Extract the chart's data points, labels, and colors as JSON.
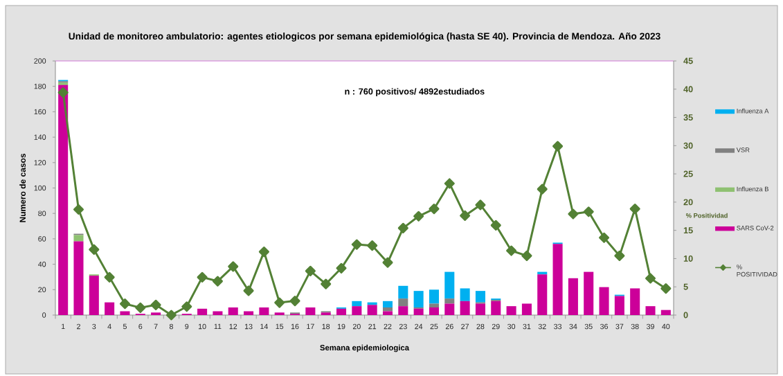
{
  "chart_data": {
    "type": "bar",
    "title": "Unidad de monitoreo ambulatorio:  agentes etiologicos por semana epidemiológica (hasta SE 40). Provincia de Mendoza. Año 2023",
    "xlabel": "Semana epidemiologica",
    "ylabel": "Numero de casos",
    "y2label": "% Positividad",
    "annotations": [
      "n : 760 positivos/ 4892estudiados"
    ],
    "categories": [
      "1",
      "2",
      "3",
      "4",
      "5",
      "6",
      "7",
      "8",
      "9",
      "10",
      "11",
      "12",
      "13",
      "14",
      "15",
      "16",
      "17",
      "18",
      "19",
      "20",
      "21",
      "22",
      "23",
      "24",
      "25",
      "26",
      "27",
      "28",
      "29",
      "30",
      "31",
      "32",
      "33",
      "34",
      "35",
      "36",
      "37",
      "38",
      "39",
      "40"
    ],
    "stacked": true,
    "series": [
      {
        "name": "SARS CoV-2",
        "color": "#cc0099",
        "values": [
          181,
          58,
          31,
          10,
          3,
          1,
          2,
          0,
          1,
          5,
          3,
          6,
          3,
          6,
          2,
          1,
          6,
          2,
          5,
          7,
          8,
          3,
          7,
          5,
          6,
          9,
          11,
          9,
          11,
          7,
          9,
          32,
          56,
          29,
          34,
          22,
          15,
          21,
          7,
          4
        ]
      },
      {
        "name": "Influenza B",
        "color": "#8fc172",
        "values": [
          2,
          5,
          1,
          0,
          0,
          0,
          0,
          0,
          0,
          0,
          0,
          0,
          0,
          0,
          0,
          0,
          0,
          0,
          0,
          0,
          0,
          0,
          0,
          0,
          0,
          0,
          0,
          0,
          0,
          0,
          0,
          0,
          0,
          0,
          0,
          0,
          0,
          0,
          0,
          0
        ]
      },
      {
        "name": "VSR",
        "color": "#808080",
        "values": [
          1,
          1,
          0,
          0,
          0,
          0,
          0,
          0,
          0,
          0,
          0,
          0,
          0,
          0,
          0,
          1,
          0,
          1,
          0,
          0,
          0,
          3,
          6,
          1,
          3,
          4,
          0,
          1,
          1,
          0,
          0,
          0,
          0,
          0,
          0,
          0,
          0,
          0,
          0,
          0
        ]
      },
      {
        "name": "Influenza A",
        "color": "#00b0f0",
        "values": [
          1,
          0,
          0,
          0,
          0,
          0,
          0,
          0,
          0,
          0,
          0,
          0,
          0,
          0,
          0,
          0,
          0,
          0,
          1,
          4,
          2,
          5,
          10,
          13,
          11,
          21,
          10,
          9,
          1,
          0,
          0,
          2,
          1,
          0,
          0,
          0,
          1,
          0,
          0,
          0
        ]
      },
      {
        "name": "% POSITIVIDAD",
        "type": "line",
        "axis": "y2",
        "color": "#538135",
        "values": [
          39.4,
          18.7,
          11.6,
          6.7,
          2.0,
          1.3,
          1.8,
          0,
          1.5,
          6.7,
          6.0,
          8.6,
          4.3,
          11.2,
          2.2,
          2.5,
          7.8,
          5.5,
          8.3,
          12.5,
          12.3,
          9.3,
          15.4,
          17.5,
          18.8,
          23.3,
          17.6,
          19.5,
          15.9,
          11.4,
          10.5,
          22.3,
          29.9,
          17.9,
          18.3,
          13.7,
          10.5,
          18.8,
          6.5,
          4.7
        ]
      }
    ],
    "ylim": [
      0,
      200
    ],
    "yticks": [
      0,
      20,
      40,
      60,
      80,
      100,
      120,
      140,
      160,
      180,
      200
    ],
    "y2lim": [
      0,
      45
    ],
    "y2ticks": [
      0,
      5,
      10,
      15,
      20,
      25,
      30,
      35,
      40,
      45
    ],
    "marker": "diamond",
    "legend": "right"
  }
}
